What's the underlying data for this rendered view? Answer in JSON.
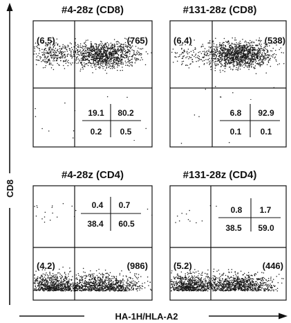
{
  "chart_data": [
    {
      "type": "scatter",
      "title": "#4-28z (CD8)",
      "xlabel": "HA-1H/HLA-A2",
      "ylabel": "CD8",
      "upper_left_value": "(6.5)",
      "upper_right_value": "(765)",
      "quadrants": {
        "upper_left": "19.1",
        "upper_right": "80.2",
        "lower_left": "0.2",
        "lower_right": "0.5"
      }
    },
    {
      "type": "scatter",
      "title": "#131-28z (CD8)",
      "xlabel": "HA-1H/HLA-A2",
      "ylabel": "CD8",
      "upper_left_value": "(6.4)",
      "upper_right_value": "(538)",
      "quadrants": {
        "upper_left": "6.8",
        "upper_right": "92.9",
        "lower_left": "0.1",
        "lower_right": "0.1"
      }
    },
    {
      "type": "scatter",
      "title": "#4-28z (CD4)",
      "xlabel": "HA-1H/HLA-A2",
      "ylabel": "CD8",
      "lower_left_value": "(4.2)",
      "lower_right_value": "(986)",
      "quadrants": {
        "upper_left": "0.4",
        "upper_right": "0.7",
        "lower_left": "38.4",
        "lower_right": "60.5"
      }
    },
    {
      "type": "scatter",
      "title": "#131-28z (CD4)",
      "xlabel": "HA-1H/HLA-A2",
      "ylabel": "CD8",
      "lower_left_value": "(5.2)",
      "lower_right_value": "(446)",
      "quadrants": {
        "upper_left": "0.8",
        "upper_right": "1.7",
        "lower_left": "38.5",
        "lower_right": "59.0"
      }
    }
  ],
  "axes": {
    "x_label": "HA-1H/HLA-A2",
    "y_label": "CD8"
  },
  "colors": {
    "dots": "#1a1a1a",
    "lines": "#111111",
    "background": "#ffffff"
  }
}
